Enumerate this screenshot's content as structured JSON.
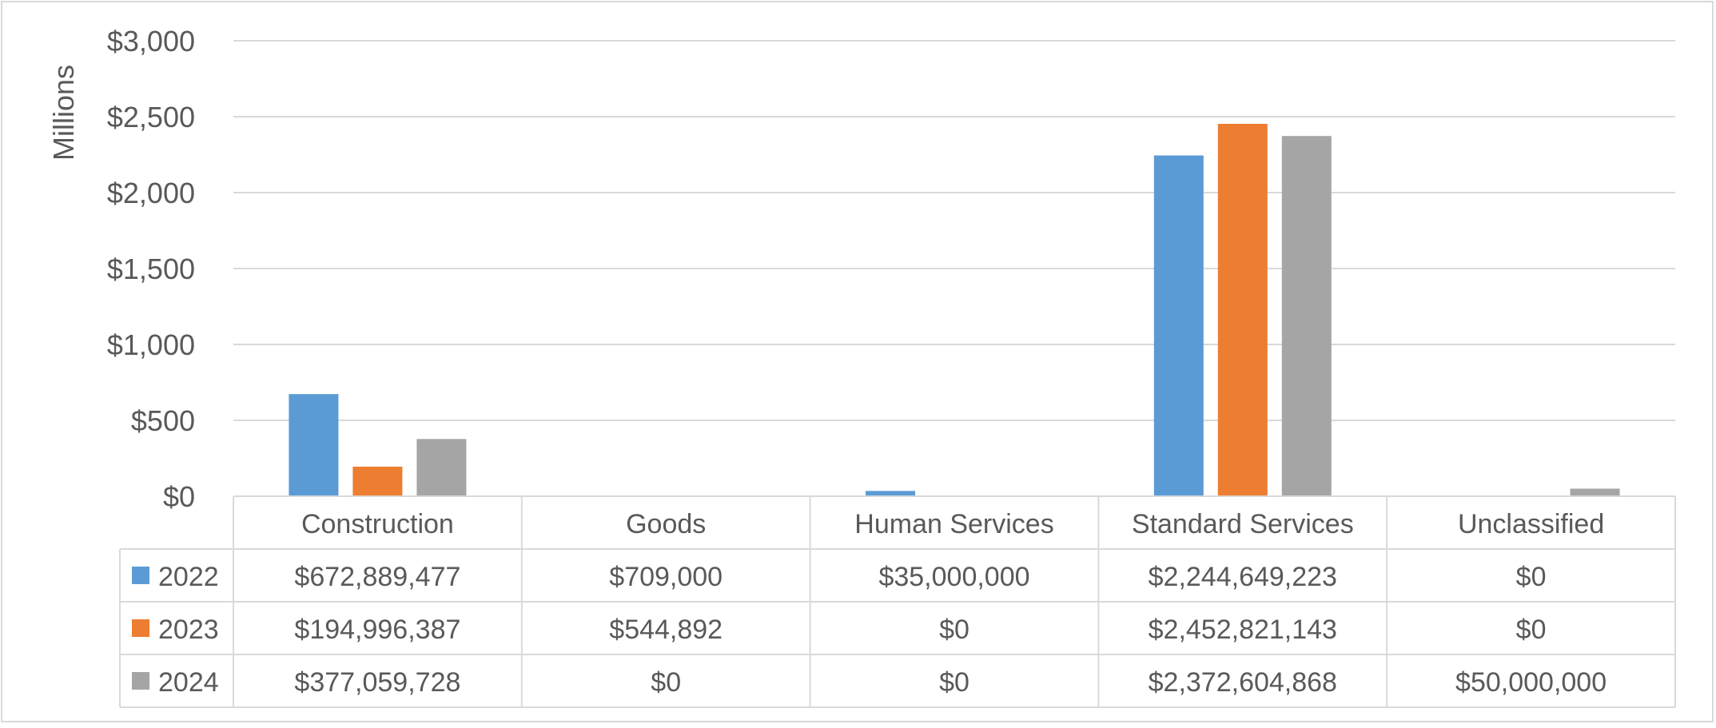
{
  "chart_data": {
    "type": "bar",
    "ylabel": "Millions",
    "ylim": [
      0,
      3000
    ],
    "ytick_labels": [
      "$0",
      "$500",
      "$1,000",
      "$1,500",
      "$2,000",
      "$2,500",
      "$3,000"
    ],
    "yticks": [
      0,
      500,
      1000,
      1500,
      2000,
      2500,
      3000
    ],
    "grid": true,
    "legend_placement": "data-table",
    "categories": [
      "Construction",
      "Goods",
      "Human Services",
      "Standard Services",
      "Unclassified"
    ],
    "series": [
      {
        "name": "2022",
        "color": "#5b9bd5",
        "values": [
          672.889477,
          0.709,
          35.0,
          2244.649223,
          0
        ],
        "value_labels": [
          "$672,889,477",
          "$709,000",
          "$35,000,000",
          "$2,244,649,223",
          "$0"
        ]
      },
      {
        "name": "2023",
        "color": "#ed7d31",
        "values": [
          194.996387,
          0.544892,
          0,
          2452.821143,
          0
        ],
        "value_labels": [
          "$194,996,387",
          "$544,892",
          "$0",
          "$2,452,821,143",
          "$0"
        ]
      },
      {
        "name": "2024",
        "color": "#a5a5a5",
        "values": [
          377.059728,
          0,
          0,
          2372.604868,
          50.0
        ],
        "value_labels": [
          "$377,059,728",
          "$0",
          "$0",
          "$2,372,604,868",
          "$50,000,000"
        ]
      }
    ]
  }
}
